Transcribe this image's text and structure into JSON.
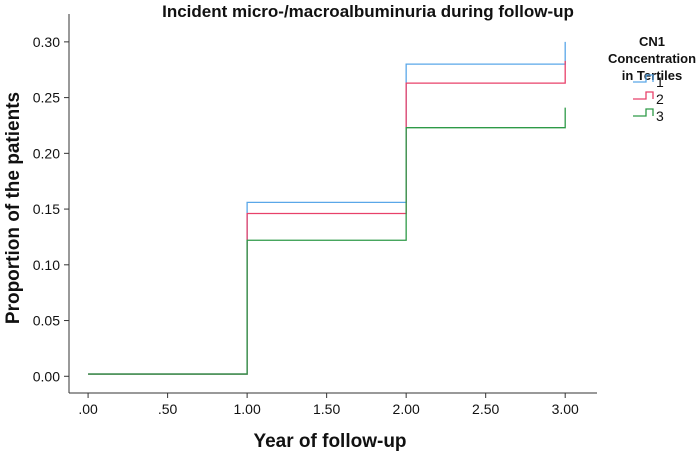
{
  "chart_data": {
    "type": "line",
    "step": true,
    "title": "Incident micro-/macroalbuminuria during follow-up",
    "xlabel": "Year of follow-up",
    "ylabel": "Proportion of the patients",
    "xlim": [
      -0.12,
      3.2
    ],
    "ylim": [
      -0.015,
      0.325
    ],
    "x_ticks": [
      0,
      0.5,
      1,
      1.5,
      2,
      2.5,
      3
    ],
    "x_tick_labels": [
      ".00",
      ".50",
      "1.00",
      "1.50",
      "2.00",
      "2.50",
      "3.00"
    ],
    "y_ticks": [
      0,
      0.05,
      0.1,
      0.15,
      0.2,
      0.25,
      0.3
    ],
    "y_tick_labels": [
      "0.00",
      "0.05",
      "0.10",
      "0.15",
      "0.20",
      "0.25",
      "0.30"
    ],
    "legend_title": [
      "CN1",
      "Concentration",
      "in Tertiles"
    ],
    "legend_position": "top-right",
    "grid": false,
    "x_end": 3,
    "series": [
      {
        "name": "1",
        "color": "#5aa7e8",
        "x": [
          0,
          1,
          2,
          3
        ],
        "y": [
          0.002,
          0.156,
          0.28,
          0.3
        ]
      },
      {
        "name": "2",
        "color": "#e8416a",
        "x": [
          0,
          1,
          2,
          3
        ],
        "y": [
          0.002,
          0.146,
          0.263,
          0.283
        ]
      },
      {
        "name": "3",
        "color": "#2e9a47",
        "x": [
          0,
          1,
          2,
          3
        ],
        "y": [
          0.002,
          0.122,
          0.223,
          0.241
        ]
      }
    ]
  }
}
